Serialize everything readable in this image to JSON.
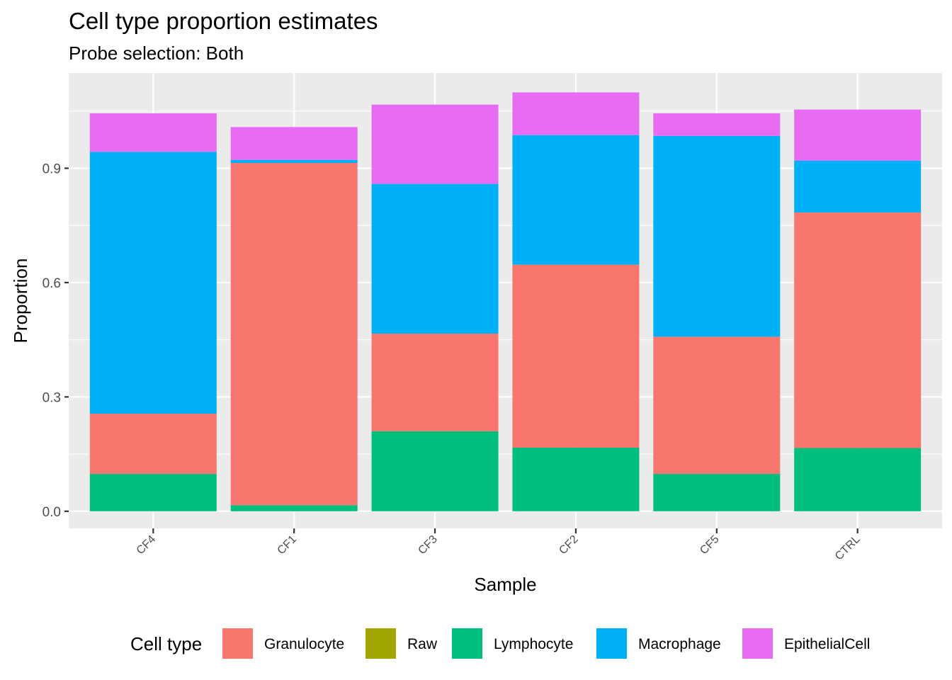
{
  "chart_data": {
    "type": "bar",
    "stacked": true,
    "title": "Cell type proportion estimates",
    "subtitle": "Probe selection: Both",
    "xlabel": "Sample",
    "ylabel": "Proportion",
    "categories": [
      "CF4",
      "CF1",
      "CF3",
      "CF2",
      "CF5",
      "CTRL"
    ],
    "ylim": [
      -0.045,
      1.15
    ],
    "yticks": [
      0.0,
      0.3,
      0.6,
      0.9
    ],
    "ytick_labels": [
      "0.0",
      "0.3",
      "0.6",
      "0.9"
    ],
    "grid": true,
    "legend": {
      "title": "Cell type",
      "placement": "bottom"
    },
    "series": [
      {
        "name": "Granulocyte",
        "color": "#F8766D",
        "values": [
          0.158,
          0.898,
          0.256,
          0.48,
          0.36,
          0.618
        ]
      },
      {
        "name": "Raw",
        "color": "#A3A500",
        "values": [
          0,
          0,
          0,
          0,
          0,
          0
        ]
      },
      {
        "name": "Lymphocyte",
        "color": "#00BF7D",
        "values": [
          0.098,
          0.016,
          0.21,
          0.167,
          0.098,
          0.166
        ]
      },
      {
        "name": "Macrophage",
        "color": "#00B0F6",
        "values": [
          0.687,
          0.008,
          0.393,
          0.34,
          0.527,
          0.136
        ]
      },
      {
        "name": "EpithelialCell",
        "color": "#E76BF3",
        "values": [
          0.101,
          0.086,
          0.208,
          0.112,
          0.059,
          0.134
        ]
      }
    ],
    "stack_order_bottom_to_top": [
      "Lymphocyte",
      "Granulocyte",
      "Macrophage",
      "EpithelialCell"
    ]
  }
}
